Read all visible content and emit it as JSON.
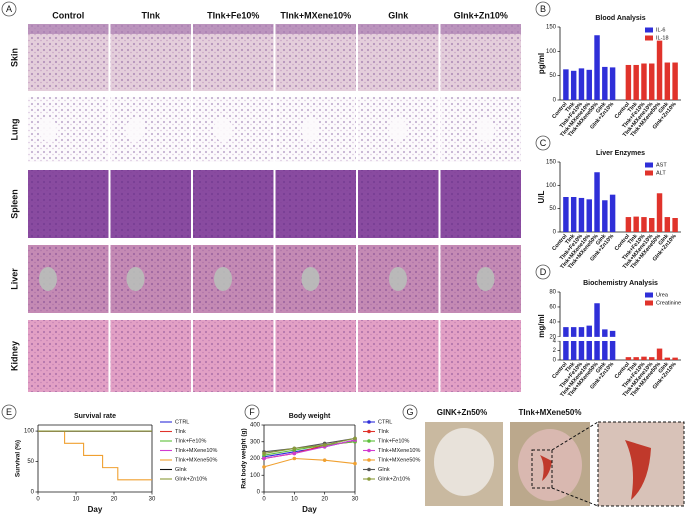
{
  "panel_labels": [
    "A",
    "B",
    "C",
    "D",
    "E",
    "F",
    "G"
  ],
  "histology": {
    "columns": [
      "Control",
      "TInk",
      "TInk+Fe10%",
      "TInk+MXene10%",
      "GInk",
      "GInk+Zn10%"
    ],
    "rows": [
      "Skin",
      "Lung",
      "Spleen",
      "Liver",
      "Kidney"
    ]
  },
  "photos": {
    "labels": [
      "GINK+Zn50%",
      "TInk+MXene50%"
    ]
  },
  "chart_data": [
    {
      "type": "bar",
      "title": "Blood Analysis",
      "y_label": "pg/ml",
      "categories": [
        "Control",
        "TInk",
        "TInk+Fe10%",
        "TInk+MXene10%",
        "TInk+MXene50%",
        "GInk",
        "GInk+Zn10%"
      ],
      "series": [
        {
          "name": "IL-6",
          "color": "#2f2fd8",
          "values": [
            63,
            60,
            65,
            62,
            133,
            68,
            67
          ]
        },
        {
          "name": "IL-18",
          "color": "#e0332b",
          "values": [
            72,
            72,
            75,
            75,
            122,
            77,
            77
          ]
        }
      ],
      "ylim": [
        0,
        150
      ],
      "yticks": [
        0,
        50,
        100,
        150
      ],
      "legend": "upper-right"
    },
    {
      "type": "bar",
      "title": "Liver Enzymes",
      "y_label": "U/L",
      "categories": [
        "Control",
        "TInk",
        "TInk+Fe10%",
        "TInk+MXene10%",
        "TInk+MXene50%",
        "GInk",
        "GInk+Zn10%"
      ],
      "series": [
        {
          "name": "AST",
          "color": "#2f2fd8",
          "values": [
            75,
            75,
            73,
            70,
            128,
            68,
            80
          ]
        },
        {
          "name": "ALT",
          "color": "#e0332b",
          "values": [
            32,
            33,
            32,
            30,
            83,
            32,
            30
          ]
        }
      ],
      "ylim": [
        0,
        150
      ],
      "yticks": [
        0,
        50,
        100,
        150
      ],
      "legend": "upper-right"
    },
    {
      "type": "bar",
      "title": "Biochemistry Analysis",
      "y_label": "mg/ml",
      "categories": [
        "Control",
        "TInk",
        "TInk+Fe10%",
        "TInk+MXene10%",
        "TInk+MXene50%",
        "GInk",
        "GInk+Zn10%"
      ],
      "series": [
        {
          "name": "Urea",
          "color": "#2f2fd8",
          "values": [
            33,
            33,
            33,
            35,
            65,
            30,
            28
          ]
        },
        {
          "name": "Creatinine",
          "color": "#e0332b",
          "values": [
            0.6,
            0.6,
            0.7,
            0.6,
            2.4,
            0.5,
            0.5
          ]
        }
      ],
      "ylim": [
        0,
        80
      ],
      "ybreak": [
        4,
        20
      ],
      "yticks": [
        0,
        2,
        4,
        20,
        40,
        60,
        80
      ],
      "legend": "upper-right"
    },
    {
      "type": "line",
      "title": "Survival rate",
      "x_label": "Day",
      "y_label": "Survival (%)",
      "series": [
        {
          "name": "CTRL",
          "color": "#2f2fd8",
          "x": [
            0,
            30
          ],
          "values": [
            100,
            100
          ]
        },
        {
          "name": "TInk",
          "color": "#e0332b",
          "x": [
            0,
            30
          ],
          "values": [
            100,
            100
          ]
        },
        {
          "name": "TInk+Fe10%",
          "color": "#5cbf3a",
          "x": [
            0,
            30
          ],
          "values": [
            100,
            100
          ]
        },
        {
          "name": "TInk+MXene10%",
          "color": "#d13ad1",
          "x": [
            0,
            30
          ],
          "values": [
            100,
            100
          ]
        },
        {
          "name": "TInk+MXene50%",
          "color": "#f0a030",
          "x": [
            0,
            7,
            7,
            12,
            12,
            17,
            17,
            21,
            21,
            30
          ],
          "values": [
            100,
            100,
            80,
            80,
            60,
            60,
            40,
            40,
            20,
            20
          ]
        },
        {
          "name": "GInk",
          "color": "#111111",
          "x": [
            0,
            30
          ],
          "values": [
            100,
            100
          ]
        },
        {
          "name": "GInk+Zn10%",
          "color": "#8a9a3a",
          "x": [
            0,
            30
          ],
          "values": [
            100,
            100
          ]
        }
      ],
      "xlim": [
        0,
        30
      ],
      "xticks": [
        0,
        10,
        20,
        30
      ],
      "ylim": [
        0,
        110
      ],
      "yticks": [
        0,
        50,
        100
      ],
      "markers": false
    },
    {
      "type": "line",
      "title": "Body weight",
      "x_label": "Day",
      "y_label": "Rat body weight (g)",
      "x": [
        0,
        10,
        20,
        30
      ],
      "series": [
        {
          "name": "CTRL",
          "color": "#2f2fd8",
          "values": [
            210,
            240,
            270,
            310
          ]
        },
        {
          "name": "TInk",
          "color": "#e0332b",
          "values": [
            200,
            230,
            280,
            300
          ]
        },
        {
          "name": "TInk+Fe10%",
          "color": "#5cbf3a",
          "values": [
            220,
            250,
            280,
            300
          ]
        },
        {
          "name": "TInk+MXene10%",
          "color": "#d13ad1",
          "values": [
            200,
            230,
            270,
            310
          ]
        },
        {
          "name": "TInk+MXene50%",
          "color": "#f0a030",
          "values": [
            150,
            200,
            190,
            170
          ]
        },
        {
          "name": "GInk",
          "color": "#555555",
          "values": [
            240,
            260,
            290,
            320
          ]
        },
        {
          "name": "GInk+Zn10%",
          "color": "#8a9a3a",
          "values": [
            230,
            260,
            280,
            320
          ]
        }
      ],
      "xlim": [
        0,
        30
      ],
      "xticks": [
        0,
        10,
        20,
        30
      ],
      "ylim": [
        0,
        400
      ],
      "yticks": [
        0,
        100,
        200,
        300,
        400
      ],
      "markers": true
    }
  ]
}
